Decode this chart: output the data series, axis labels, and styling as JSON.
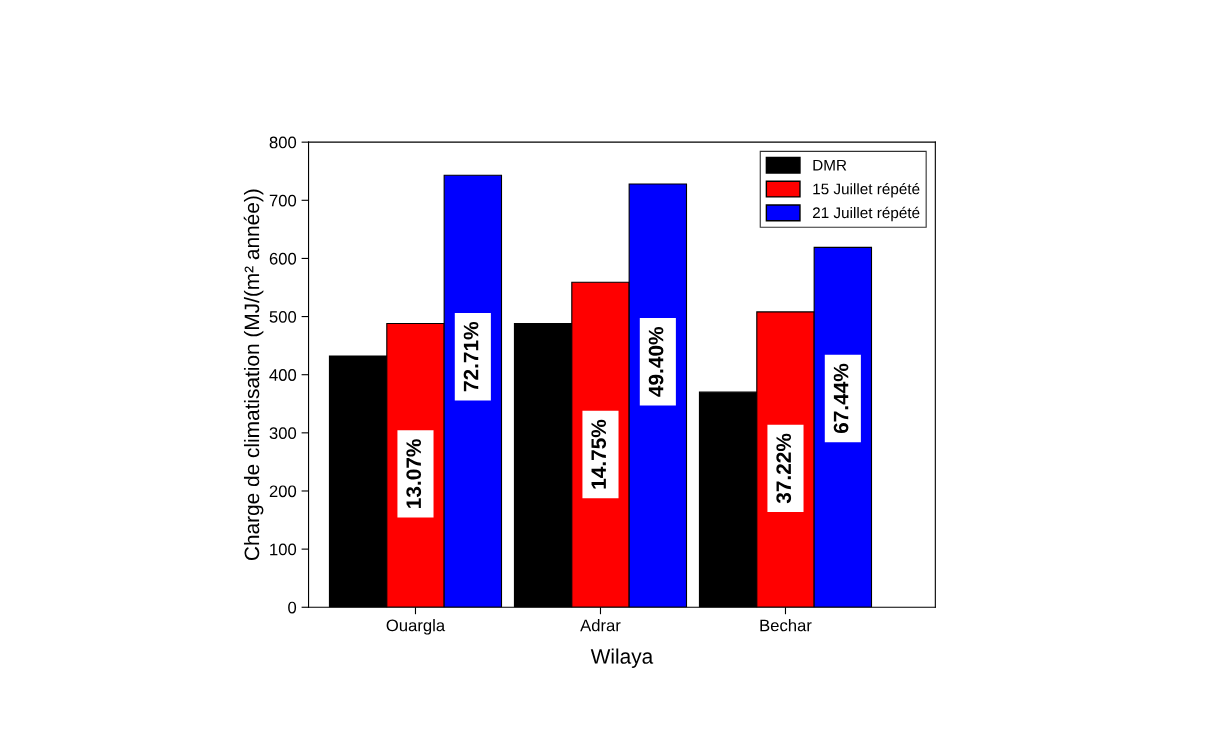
{
  "chart_data": {
    "type": "bar",
    "xlabel": "Wilaya",
    "ylabel": "Charge de climatisation (MJ/(m² année))",
    "categories": [
      "Ouargla",
      "Adrar",
      "Bechar"
    ],
    "series": [
      {
        "name": "DMR",
        "color": "#000000",
        "values": [
          432,
          488,
          370
        ]
      },
      {
        "name": "15 Juillet répété",
        "color": "#ff0000",
        "values": [
          488,
          559,
          508
        ]
      },
      {
        "name": "21 Juillet répété",
        "color": "#0000ff",
        "values": [
          743,
          728,
          619
        ]
      }
    ],
    "annotations": [
      "13.07%",
      "14.75%",
      "37.22%",
      "72.71%",
      "49.40%",
      "67.44%"
    ],
    "ylim": [
      0,
      800
    ],
    "yticks": [
      0,
      100,
      200,
      300,
      400,
      500,
      600,
      700,
      800
    ],
    "legend": "top right",
    "grid": false
  }
}
